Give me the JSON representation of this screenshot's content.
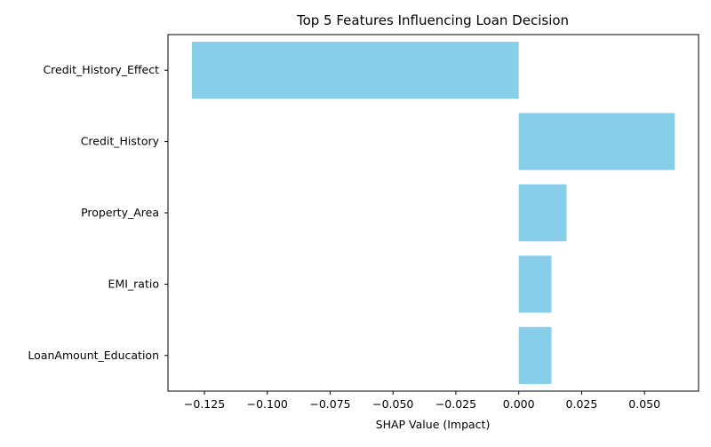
{
  "chart_data": {
    "type": "bar",
    "orientation": "horizontal",
    "title": "Top 5 Features Influencing Loan Decision",
    "xlabel": "SHAP Value (Impact)",
    "ylabel": "",
    "categories": [
      "Credit_History_Effect",
      "Credit_History",
      "Property_Area",
      "EMI_ratio",
      "LoanAmount_Education"
    ],
    "values": [
      -0.13,
      0.062,
      0.019,
      0.013,
      0.013
    ],
    "xlim": [
      -0.1395,
      0.0715
    ],
    "xticks": [
      -0.125,
      -0.1,
      -0.075,
      -0.05,
      -0.025,
      0.0,
      0.025,
      0.05
    ],
    "xtick_labels": [
      "−0.125",
      "−0.100",
      "−0.075",
      "−0.050",
      "−0.025",
      "0.000",
      "0.025",
      "0.050"
    ],
    "bar_color": "#87ceeb",
    "grid": false,
    "legend": false
  }
}
